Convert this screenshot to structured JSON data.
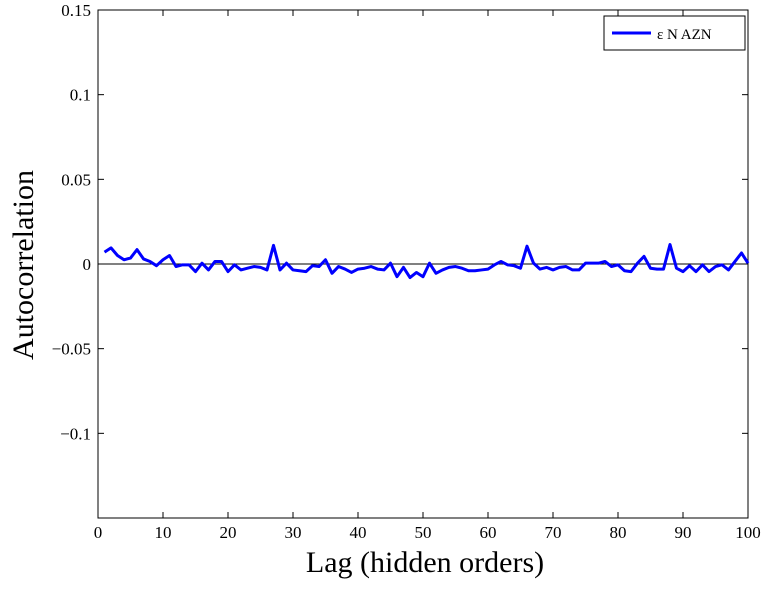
{
  "chart_data": {
    "type": "line",
    "title": "",
    "xlabel": "Lag (hidden orders)",
    "ylabel": "Autocorrelation",
    "xlim": [
      0,
      100
    ],
    "ylim": [
      -0.15,
      0.15
    ],
    "x_ticks": [
      0,
      10,
      20,
      30,
      40,
      50,
      60,
      70,
      80,
      90,
      100
    ],
    "x_tick_labels": [
      "0",
      "10",
      "20",
      "30",
      "40",
      "50",
      "60",
      "70",
      "80",
      "90",
      "100"
    ],
    "y_ticks": [
      0.15,
      0.1,
      0.05,
      0,
      -0.05,
      -0.1
    ],
    "y_tick_labels": [
      "0.15",
      "0.1",
      "0.05",
      "0",
      "−0.05",
      "−0.1"
    ],
    "grid": false,
    "zero_line": true,
    "legend_position": "top-right",
    "series": [
      {
        "name": "ε N AZN",
        "color": "#0000ff",
        "x": [
          1,
          2,
          3,
          4,
          5,
          6,
          7,
          8,
          9,
          10,
          11,
          12,
          13,
          14,
          15,
          16,
          17,
          18,
          19,
          20,
          21,
          22,
          23,
          24,
          25,
          26,
          27,
          28,
          29,
          30,
          31,
          32,
          33,
          34,
          35,
          36,
          37,
          38,
          39,
          40,
          41,
          42,
          43,
          44,
          45,
          46,
          47,
          48,
          49,
          50,
          51,
          52,
          53,
          54,
          55,
          56,
          57,
          58,
          59,
          60,
          61,
          62,
          63,
          64,
          65,
          66,
          67,
          68,
          69,
          70,
          71,
          72,
          73,
          74,
          75,
          76,
          77,
          78,
          79,
          80,
          81,
          82,
          83,
          84,
          85,
          86,
          87,
          88,
          89,
          90,
          91,
          92,
          93,
          94,
          95,
          96,
          97,
          98,
          99,
          100
        ],
        "values": [
          0.007,
          0.0095,
          0.005,
          0.0025,
          0.0035,
          0.0085,
          0.003,
          0.0015,
          -0.001,
          0.0025,
          0.005,
          -0.0015,
          -0.0005,
          -0.0005,
          -0.0045,
          0.0005,
          -0.0035,
          0.0015,
          0.0015,
          -0.0045,
          -0.0005,
          -0.0035,
          -0.0025,
          -0.0015,
          -0.002,
          -0.0035,
          0.011,
          -0.0035,
          0.0005,
          -0.0035,
          -0.004,
          -0.0045,
          -0.001,
          -0.0015,
          0.0025,
          -0.0055,
          -0.0015,
          -0.003,
          -0.005,
          -0.003,
          -0.0025,
          -0.0015,
          -0.003,
          -0.0035,
          0.0005,
          -0.0075,
          -0.002,
          -0.008,
          -0.005,
          -0.0075,
          0.0005,
          -0.0055,
          -0.0035,
          -0.002,
          -0.0015,
          -0.0025,
          -0.004,
          -0.004,
          -0.0035,
          -0.003,
          -0.0005,
          0.0015,
          -0.0005,
          -0.001,
          -0.0025,
          0.0105,
          0.0005,
          -0.003,
          -0.002,
          -0.0035,
          -0.002,
          -0.0015,
          -0.0035,
          -0.0035,
          0.0005,
          0.0005,
          0.0005,
          0.0015,
          -0.0015,
          -0.0005,
          -0.004,
          -0.0045,
          0.0005,
          0.0045,
          -0.0025,
          -0.003,
          -0.003,
          0.0115,
          -0.0025,
          -0.0045,
          -0.001,
          -0.0045,
          -0.0005,
          -0.0045,
          -0.0015,
          -0.0005,
          -0.0035,
          0.0015,
          0.0065,
          0.0005
        ]
      }
    ]
  }
}
